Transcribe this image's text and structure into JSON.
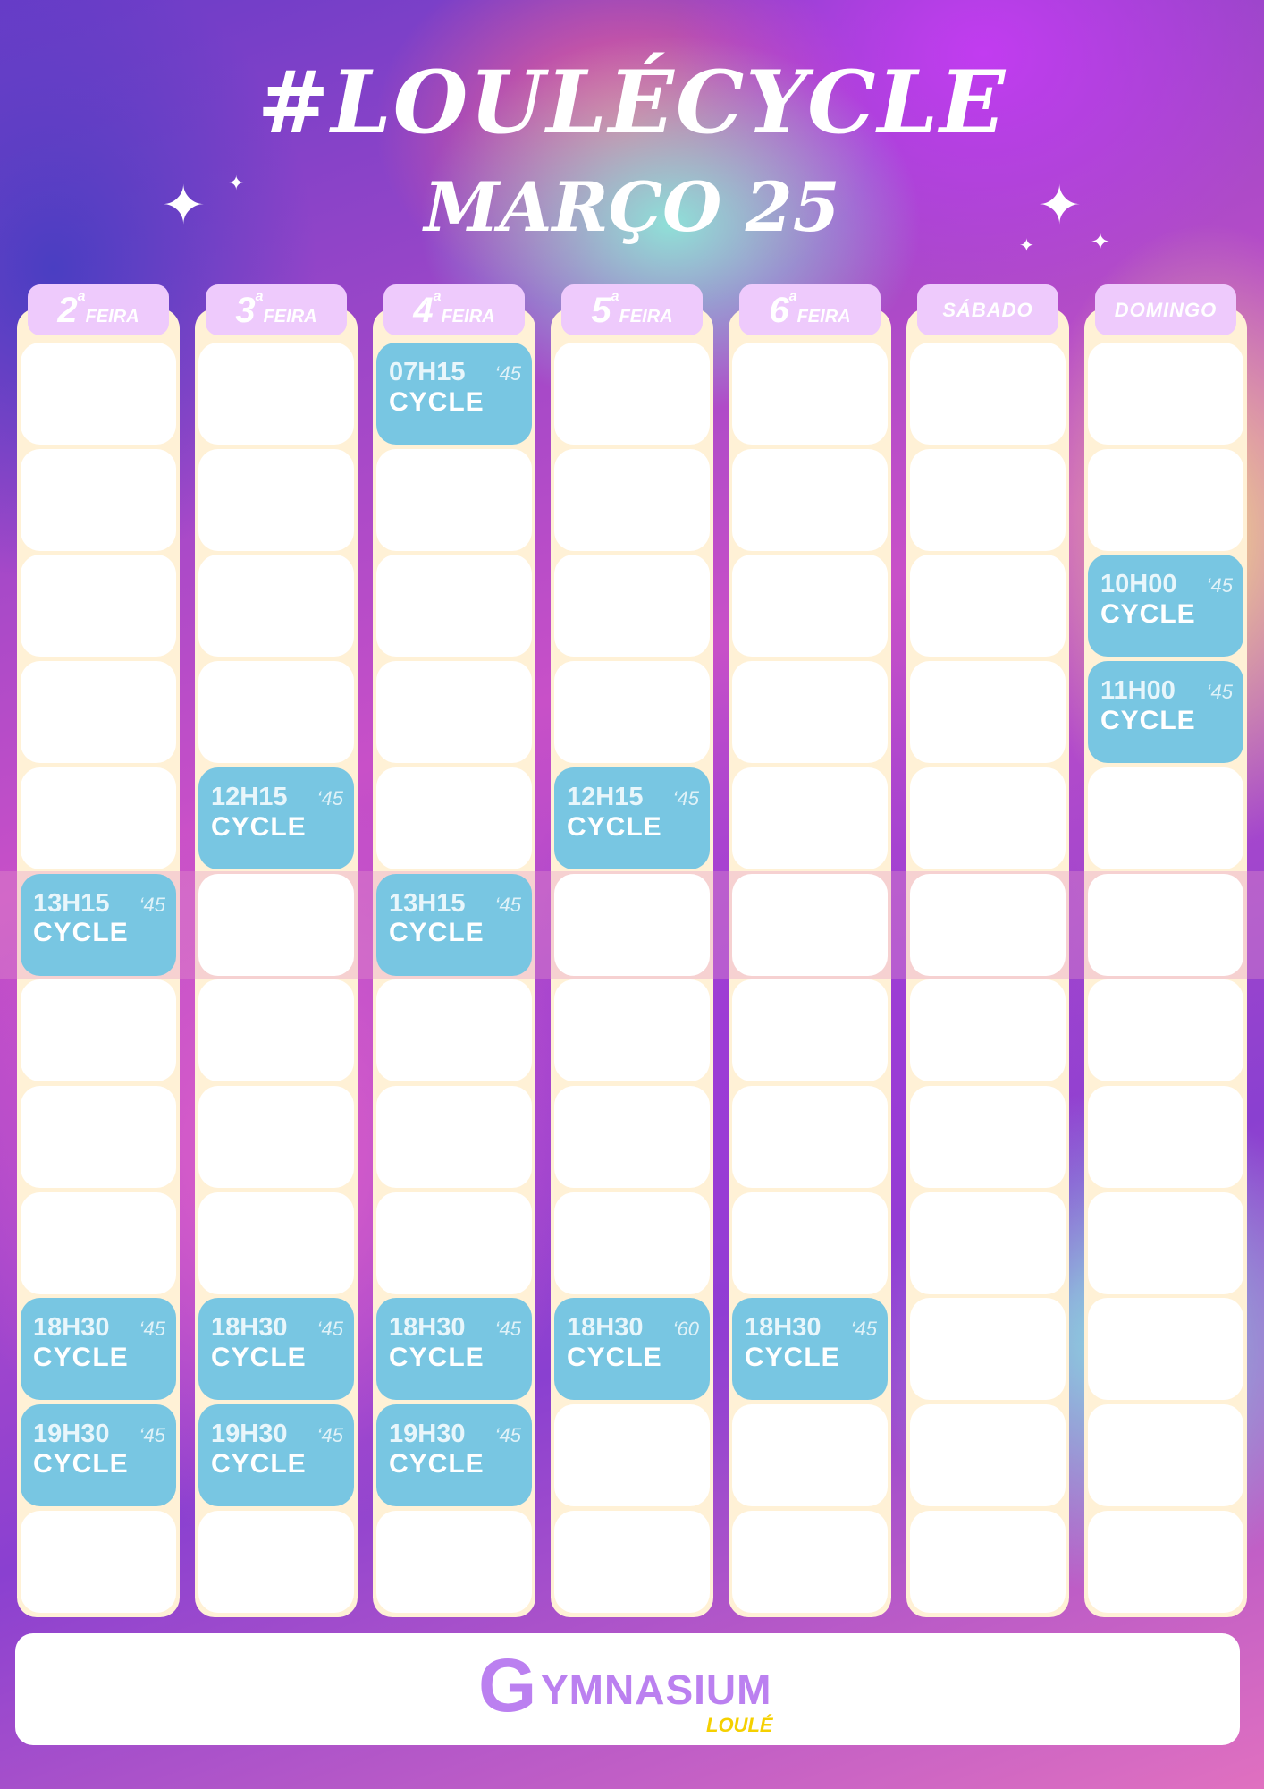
{
  "title": "#LOULÉCYCLE",
  "subtitle": "MARÇO 25",
  "days": [
    {
      "num": "2",
      "sup": "a",
      "word": "FEIRA"
    },
    {
      "num": "3",
      "sup": "a",
      "word": "FEIRA"
    },
    {
      "num": "4",
      "sup": "a",
      "word": "FEIRA"
    },
    {
      "num": "5",
      "sup": "a",
      "word": "FEIRA"
    },
    {
      "num": "6",
      "sup": "a",
      "word": "FEIRA"
    },
    {
      "label": "SÁBADO"
    },
    {
      "label": "DOMINGO"
    }
  ],
  "events": [
    [
      {
        "row": 5,
        "time": "13H15",
        "dur": "‘45",
        "name": "CYCLE"
      },
      {
        "row": 9,
        "time": "18H30",
        "dur": "‘45",
        "name": "CYCLE"
      },
      {
        "row": 10,
        "time": "19H30",
        "dur": "‘45",
        "name": "CYCLE"
      }
    ],
    [
      {
        "row": 4,
        "time": "12H15",
        "dur": "‘45",
        "name": "CYCLE"
      },
      {
        "row": 9,
        "time": "18H30",
        "dur": "‘45",
        "name": "CYCLE"
      },
      {
        "row": 10,
        "time": "19H30",
        "dur": "‘45",
        "name": "CYCLE"
      }
    ],
    [
      {
        "row": 0,
        "time": "07H15",
        "dur": "‘45",
        "name": "CYCLE"
      },
      {
        "row": 5,
        "time": "13H15",
        "dur": "‘45",
        "name": "CYCLE"
      },
      {
        "row": 9,
        "time": "18H30",
        "dur": "‘45",
        "name": "CYCLE"
      },
      {
        "row": 10,
        "time": "19H30",
        "dur": "‘45",
        "name": "CYCLE"
      }
    ],
    [
      {
        "row": 4,
        "time": "12H15",
        "dur": "‘45",
        "name": "CYCLE"
      },
      {
        "row": 9,
        "time": "18H30",
        "dur": "‘60",
        "name": "CYCLE"
      }
    ],
    [
      {
        "row": 9,
        "time": "18H30",
        "dur": "‘45",
        "name": "CYCLE"
      }
    ],
    [],
    [
      {
        "row": 2,
        "time": "10H00",
        "dur": "‘45",
        "name": "CYCLE"
      },
      {
        "row": 3,
        "time": "11H00",
        "dur": "‘45",
        "name": "CYCLE"
      }
    ]
  ],
  "logo": {
    "name": "YMNASIUM",
    "initial": "G",
    "sub": "LOULÉ"
  },
  "colors": {
    "event": "#78c6e2",
    "tab": "#eecafc",
    "column": "#fff1d6",
    "logo": "#bb80f0",
    "logo_sub": "#f5d000"
  }
}
